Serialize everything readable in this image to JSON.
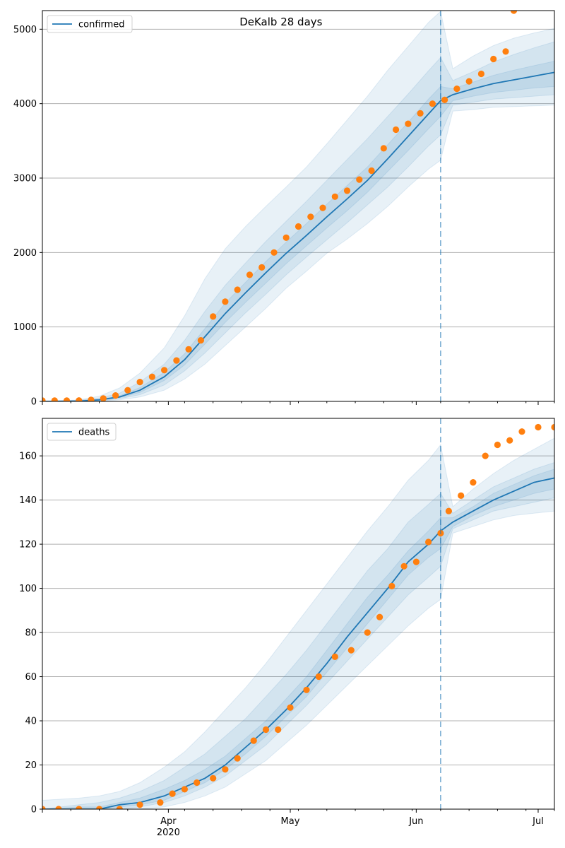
{
  "chart_data": [
    {
      "type": "line",
      "title": "DeKalb 28 days",
      "ylim": [
        0,
        5250
      ],
      "yticks": [
        0,
        1000,
        2000,
        3000,
        4000,
        5000
      ],
      "xlim": [
        "2020-03-01",
        "2020-07-05"
      ],
      "grid": "horizontal",
      "legend": "top-left",
      "legend_label": "confirmed",
      "forecast_start": "2020-06-07",
      "series": [
        {
          "name": "confirmed",
          "kind": "model-median",
          "x": [
            "2020-03-01",
            "2020-03-10",
            "2020-03-15",
            "2020-03-20",
            "2020-03-25",
            "2020-03-31",
            "2020-04-05",
            "2020-04-10",
            "2020-04-15",
            "2020-04-20",
            "2020-04-25",
            "2020-04-30",
            "2020-05-05",
            "2020-05-10",
            "2020-05-15",
            "2020-05-20",
            "2020-05-25",
            "2020-05-30",
            "2020-06-04",
            "2020-06-07",
            "2020-06-10",
            "2020-06-15",
            "2020-06-20",
            "2020-06-25",
            "2020-06-30",
            "2020-07-05"
          ],
          "y": [
            0,
            5,
            20,
            60,
            150,
            330,
            560,
            870,
            1180,
            1460,
            1730,
            1990,
            2230,
            2480,
            2720,
            2970,
            3260,
            3560,
            3860,
            4040,
            4120,
            4200,
            4270,
            4320,
            4370,
            4420
          ]
        },
        {
          "name": "confirmed observed",
          "kind": "observed",
          "x": [
            "2020-03-01",
            "2020-03-04",
            "2020-03-07",
            "2020-03-10",
            "2020-03-13",
            "2020-03-16",
            "2020-03-19",
            "2020-03-22",
            "2020-03-25",
            "2020-03-28",
            "2020-03-31",
            "2020-04-03",
            "2020-04-06",
            "2020-04-09",
            "2020-04-12",
            "2020-04-15",
            "2020-04-18",
            "2020-04-21",
            "2020-04-24",
            "2020-04-27",
            "2020-04-30",
            "2020-05-03",
            "2020-05-06",
            "2020-05-09",
            "2020-05-12",
            "2020-05-15",
            "2020-05-18",
            "2020-05-21",
            "2020-05-24",
            "2020-05-27",
            "2020-05-30",
            "2020-06-02",
            "2020-06-05",
            "2020-06-08",
            "2020-06-11",
            "2020-06-14",
            "2020-06-17",
            "2020-06-20",
            "2020-06-23",
            "2020-06-25"
          ],
          "y": [
            10,
            10,
            10,
            12,
            20,
            40,
            80,
            150,
            260,
            330,
            420,
            550,
            700,
            820,
            1140,
            1340,
            1500,
            1700,
            1800,
            2000,
            2200,
            2350,
            2480,
            2600,
            2750,
            2830,
            2980,
            3100,
            3400,
            3650,
            3730,
            3870,
            4000,
            4050,
            4200,
            4300,
            4400,
            4600,
            4700,
            5250
          ]
        }
      ],
      "bands": {
        "x": [
          "2020-03-01",
          "2020-03-10",
          "2020-03-15",
          "2020-03-20",
          "2020-03-25",
          "2020-03-31",
          "2020-04-05",
          "2020-04-10",
          "2020-04-15",
          "2020-04-20",
          "2020-04-25",
          "2020-04-30",
          "2020-05-05",
          "2020-05-10",
          "2020-05-15",
          "2020-05-20",
          "2020-05-25",
          "2020-05-30",
          "2020-06-04",
          "2020-06-07",
          "2020-06-10",
          "2020-06-15",
          "2020-06-20",
          "2020-06-25",
          "2020-06-30",
          "2020-07-05"
        ],
        "lower": [
          [
            0,
            0,
            0,
            20,
            60,
            150,
            300,
            500,
            750,
            1000,
            1250,
            1520,
            1750,
            1990,
            2180,
            2390,
            2620,
            2880,
            3120,
            3240,
            3900,
            3920,
            3950,
            3960,
            3970,
            3980
          ],
          [
            0,
            0,
            5,
            35,
            90,
            220,
            410,
            650,
            920,
            1190,
            1440,
            1700,
            1940,
            2170,
            2400,
            2640,
            2880,
            3150,
            3430,
            3580,
            3980,
            4020,
            4060,
            4080,
            4100,
            4120
          ],
          [
            0,
            2,
            12,
            48,
            120,
            280,
            490,
            770,
            1060,
            1330,
            1590,
            1850,
            2090,
            2330,
            2560,
            2810,
            3090,
            3370,
            3660,
            3830,
            4040,
            4100,
            4150,
            4180,
            4210,
            4230
          ]
        ],
        "upper": [
          [
            0,
            10,
            30,
            75,
            185,
            390,
            640,
            980,
            1320,
            1600,
            1880,
            2140,
            2390,
            2650,
            2900,
            3150,
            3450,
            3750,
            4060,
            4230,
            4200,
            4290,
            4380,
            4450,
            4510,
            4570
          ],
          [
            0,
            15,
            45,
            110,
            260,
            500,
            820,
            1210,
            1560,
            1860,
            2150,
            2420,
            2690,
            2970,
            3250,
            3530,
            3830,
            4130,
            4440,
            4620,
            4310,
            4430,
            4560,
            4660,
            4750,
            4830
          ],
          [
            0,
            20,
            70,
            180,
            380,
            720,
            1150,
            1650,
            2050,
            2350,
            2620,
            2880,
            3150,
            3460,
            3780,
            4100,
            4450,
            4770,
            5090,
            5240,
            4470,
            4640,
            4780,
            4880,
            4950,
            5010
          ]
        ]
      }
    },
    {
      "type": "line",
      "title": "",
      "xlabel": "2020",
      "ylim": [
        0,
        177
      ],
      "yticks": [
        0,
        20,
        40,
        60,
        80,
        100,
        120,
        140,
        160
      ],
      "xlim": [
        "2020-03-01",
        "2020-07-05"
      ],
      "xtick_labels": [
        "Apr",
        "May",
        "Jun",
        "Jul"
      ],
      "grid": "horizontal",
      "legend": "top-left",
      "legend_label": "deaths",
      "forecast_start": "2020-06-07",
      "series": [
        {
          "name": "deaths",
          "kind": "model-median",
          "x": [
            "2020-03-01",
            "2020-03-10",
            "2020-03-15",
            "2020-03-20",
            "2020-03-25",
            "2020-03-31",
            "2020-04-05",
            "2020-04-10",
            "2020-04-15",
            "2020-04-20",
            "2020-04-25",
            "2020-04-30",
            "2020-05-05",
            "2020-05-10",
            "2020-05-15",
            "2020-05-20",
            "2020-05-25",
            "2020-05-30",
            "2020-06-04",
            "2020-06-07",
            "2020-06-10",
            "2020-06-15",
            "2020-06-20",
            "2020-06-25",
            "2020-06-30",
            "2020-07-05"
          ],
          "y": [
            0,
            0,
            0,
            2,
            3,
            6,
            10,
            14,
            20,
            28,
            36,
            45,
            55,
            66,
            78,
            89,
            100,
            112,
            120,
            126,
            130,
            135,
            140,
            144,
            148,
            150
          ]
        },
        {
          "name": "deaths observed",
          "kind": "observed",
          "x": [
            "2020-03-01",
            "2020-03-05",
            "2020-03-10",
            "2020-03-15",
            "2020-03-20",
            "2020-03-25",
            "2020-03-30",
            "2020-04-02",
            "2020-04-05",
            "2020-04-08",
            "2020-04-12",
            "2020-04-15",
            "2020-04-18",
            "2020-04-22",
            "2020-04-25",
            "2020-04-28",
            "2020-05-01",
            "2020-05-05",
            "2020-05-08",
            "2020-05-12",
            "2020-05-16",
            "2020-05-20",
            "2020-05-23",
            "2020-05-26",
            "2020-05-29",
            "2020-06-01",
            "2020-06-04",
            "2020-06-07",
            "2020-06-09",
            "2020-06-12",
            "2020-06-15",
            "2020-06-18",
            "2020-06-21",
            "2020-06-24",
            "2020-06-27",
            "2020-07-01",
            "2020-07-05"
          ],
          "y": [
            0,
            0,
            0,
            0,
            0,
            2,
            3,
            7,
            9,
            12,
            14,
            18,
            23,
            31,
            36,
            36,
            46,
            54,
            60,
            69,
            72,
            80,
            87,
            101,
            110,
            112,
            121,
            125,
            135,
            142,
            148,
            160,
            165,
            167,
            171,
            173,
            173
          ]
        }
      ],
      "bands": {
        "x": [
          "2020-03-01",
          "2020-03-10",
          "2020-03-15",
          "2020-03-20",
          "2020-03-25",
          "2020-03-31",
          "2020-04-05",
          "2020-04-10",
          "2020-04-15",
          "2020-04-20",
          "2020-04-25",
          "2020-04-30",
          "2020-05-05",
          "2020-05-10",
          "2020-05-15",
          "2020-05-20",
          "2020-05-25",
          "2020-05-30",
          "2020-06-04",
          "2020-06-07",
          "2020-06-10",
          "2020-06-15",
          "2020-06-20",
          "2020-06-25",
          "2020-06-30",
          "2020-07-05"
        ],
        "lower": [
          [
            0,
            0,
            0,
            0,
            0,
            1,
            3,
            6,
            10,
            16,
            22,
            30,
            38,
            47,
            56,
            65,
            74,
            83,
            91,
            95,
            125,
            128,
            131,
            133,
            134,
            135
          ],
          [
            0,
            0,
            0,
            0,
            1,
            3,
            6,
            10,
            15,
            22,
            29,
            38,
            47,
            57,
            67,
            77,
            87,
            97,
            105,
            110,
            127,
            131,
            135,
            137,
            139,
            141
          ],
          [
            0,
            0,
            0,
            1,
            2,
            4,
            8,
            12,
            18,
            25,
            33,
            42,
            51,
            62,
            73,
            84,
            95,
            106,
            114,
            118,
            128,
            133,
            137,
            140,
            143,
            145
          ]
        ],
        "upper": [
          [
            0,
            1,
            1,
            3,
            5,
            9,
            13,
            18,
            24,
            32,
            40,
            50,
            60,
            72,
            84,
            96,
            106,
            117,
            126,
            132,
            132,
            137,
            143,
            147,
            151,
            154
          ],
          [
            0,
            2,
            3,
            5,
            8,
            13,
            19,
            25,
            33,
            41,
            51,
            61,
            72,
            84,
            96,
            108,
            118,
            130,
            138,
            143,
            134,
            140,
            146,
            150,
            154,
            157
          ],
          [
            4,
            5,
            6,
            8,
            12,
            19,
            26,
            35,
            45,
            55,
            66,
            78,
            90,
            102,
            114,
            126,
            137,
            149,
            158,
            165,
            137,
            145,
            152,
            158,
            163,
            168
          ]
        ]
      }
    }
  ],
  "colors": {
    "model_line": "#1f77b4",
    "band_fill": "#1f77b4",
    "observed": "#ff7f0e",
    "grid": "#b0b0b0",
    "forecast_line": "#1f77b4"
  }
}
